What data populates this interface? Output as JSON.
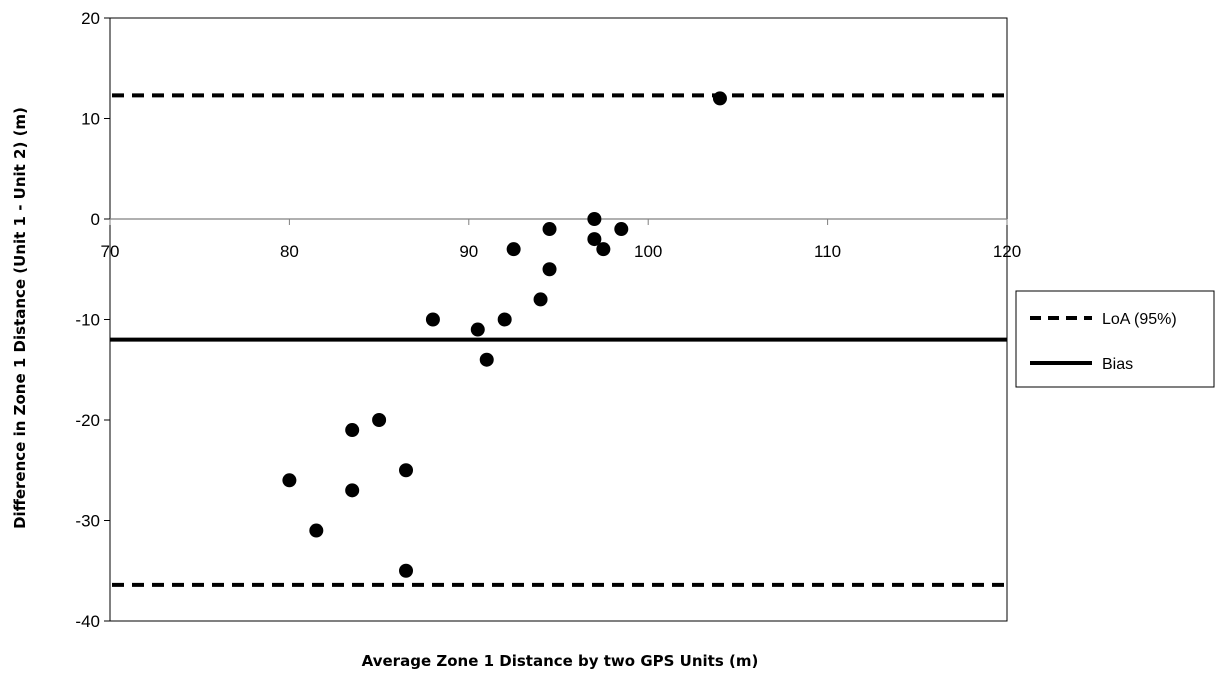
{
  "chart_data": {
    "type": "scatter",
    "title": "",
    "xlabel": "Average Zone 1 Distance by two GPS Units (m)",
    "ylabel": "Difference in  Zone 1 Distance (Unit 1 - Unit 2) (m)",
    "xlim": [
      70,
      120
    ],
    "ylim": [
      -40,
      20
    ],
    "xticks": [
      70,
      80,
      90,
      100,
      110,
      120
    ],
    "yticks": [
      20,
      10,
      0,
      -10,
      -20,
      -30,
      -40
    ],
    "x_tick_labels": [
      "70",
      "80",
      "90",
      "100",
      "110",
      "120"
    ],
    "y_tick_labels": [
      "20",
      "10",
      "0",
      "-10",
      "-20",
      "-30",
      "-40"
    ],
    "grid": false,
    "legend_position": "right",
    "series": [
      {
        "name": "",
        "kind": "points",
        "color": "#000000",
        "points": [
          {
            "x": 104,
            "y": 12
          },
          {
            "x": 97,
            "y": 0
          },
          {
            "x": 94.5,
            "y": -1
          },
          {
            "x": 98.5,
            "y": -1
          },
          {
            "x": 97,
            "y": -2
          },
          {
            "x": 92.5,
            "y": -3
          },
          {
            "x": 97.5,
            "y": -3
          },
          {
            "x": 94.5,
            "y": -5
          },
          {
            "x": 94,
            "y": -8
          },
          {
            "x": 88,
            "y": -10
          },
          {
            "x": 92,
            "y": -10
          },
          {
            "x": 90.5,
            "y": -11
          },
          {
            "x": 91,
            "y": -14
          },
          {
            "x": 85,
            "y": -20
          },
          {
            "x": 83.5,
            "y": -21
          },
          {
            "x": 86.5,
            "y": -25
          },
          {
            "x": 80,
            "y": -26
          },
          {
            "x": 83.5,
            "y": -27
          },
          {
            "x": 81.5,
            "y": -31
          },
          {
            "x": 86.5,
            "y": -35
          }
        ]
      },
      {
        "name": "LoA (95%)",
        "kind": "hline-dashed",
        "color": "#000000",
        "values": [
          12.3,
          -36.4
        ]
      },
      {
        "name": "Bias",
        "kind": "hline-solid",
        "color": "#000000",
        "values": [
          -12
        ]
      }
    ]
  }
}
